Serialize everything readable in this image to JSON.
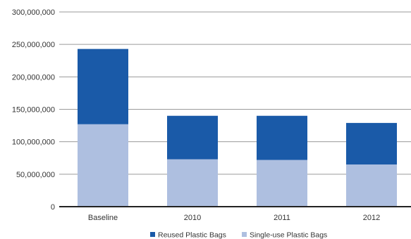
{
  "chart_data": {
    "type": "bar",
    "stacked": true,
    "categories": [
      "Baseline",
      "2010",
      "2011",
      "2012"
    ],
    "series": [
      {
        "name": "Single-use Plastic Bags",
        "values": [
          127000000,
          73000000,
          72000000,
          65000000
        ],
        "color": "#aebfe0"
      },
      {
        "name": "Reused Plastic Bags",
        "values": [
          116000000,
          67000000,
          68000000,
          64000000
        ],
        "color": "#1a5aa8"
      }
    ],
    "ylim": [
      0,
      300000000
    ],
    "yticks": [
      "0",
      "50,000,000",
      "100,000,000",
      "150,000,000",
      "200,000,000",
      "250,000,000",
      "300,000,000"
    ],
    "ytick_values": [
      0,
      50000000,
      100000000,
      150000000,
      200000000,
      250000000,
      300000000
    ],
    "grid": true,
    "legend_position": "bottom-center",
    "legend_order": [
      "Reused Plastic Bags",
      "Single-use Plastic Bags"
    ],
    "title": "",
    "xlabel": "",
    "ylabel": ""
  }
}
